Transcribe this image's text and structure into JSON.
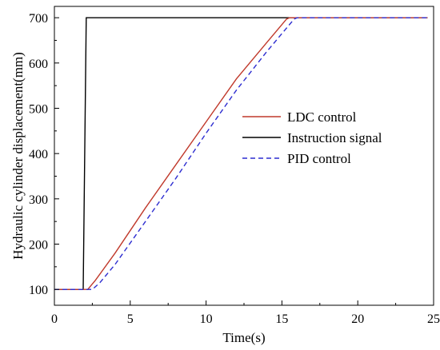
{
  "chart_data": {
    "type": "line",
    "xlabel": "Time(s)",
    "ylabel": "Hydraulic cylinder displacement(mm)",
    "xlim": [
      0,
      25
    ],
    "ylim": [
      65,
      725
    ],
    "xticks": [
      0,
      5,
      10,
      15,
      20,
      25
    ],
    "yticks": [
      100,
      200,
      300,
      400,
      500,
      600,
      700
    ],
    "grid": false,
    "legend_position": "right-center",
    "series": [
      {
        "name": "Instruction signal",
        "color": "#000000",
        "style": "solid",
        "x": [
          0,
          1.9,
          2.1,
          24.6
        ],
        "y": [
          100,
          100,
          700,
          700
        ]
      },
      {
        "name": "LDC control",
        "color": "#c0392b",
        "style": "solid",
        "x": [
          0,
          2.2,
          2.7,
          4,
          6,
          8,
          10,
          12,
          14,
          15.3,
          15.5,
          24.6
        ],
        "y": [
          100,
          100,
          120,
          180,
          280,
          375,
          470,
          565,
          645,
          697,
          700,
          700
        ]
      },
      {
        "name": "PID control",
        "color": "#2d2dd0",
        "style": "dashed",
        "x": [
          0,
          2.5,
          3,
          4,
          6,
          8,
          10,
          12,
          14,
          15.8,
          16,
          24.6
        ],
        "y": [
          100,
          100,
          115,
          155,
          250,
          345,
          445,
          540,
          625,
          697,
          700,
          700
        ]
      }
    ],
    "legend_order": [
      "LDC control",
      "Instruction signal",
      "PID control"
    ]
  }
}
